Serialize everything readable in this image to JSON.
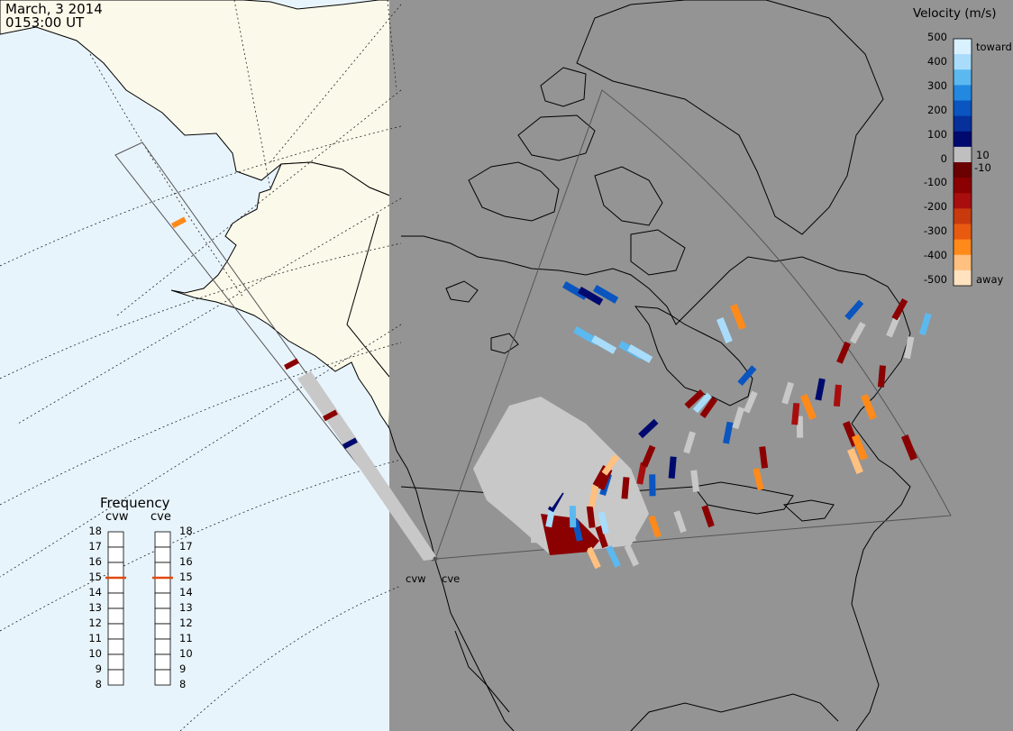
{
  "header": {
    "date": "March, 3 2014",
    "time": "0153:00 UT"
  },
  "legend": {
    "title": "Velocity (m/s)",
    "ticks": [
      "500",
      "400",
      "300",
      "200",
      "100",
      "0",
      "-100",
      "-200",
      "-300",
      "-400",
      "-500"
    ],
    "side_labels": [
      "toward",
      "10",
      "-10",
      "away"
    ],
    "colors": [
      "#d9f0ff",
      "#a8dcfa",
      "#5bb9f0",
      "#2388e0",
      "#0a55c0",
      "#06309a",
      "#000a6e",
      "#bfbfbf",
      "#6a0000",
      "#8b0000",
      "#a80e0e",
      "#c83a0e",
      "#e85a10",
      "#ff8a1a",
      "#ffc080",
      "#ffe2c0"
    ]
  },
  "frequency": {
    "title": "Frequency",
    "radars": [
      "cvw",
      "cve"
    ],
    "scale": [
      "18",
      "17",
      "16",
      "15",
      "14",
      "13",
      "12",
      "11",
      "10",
      "9",
      "8"
    ],
    "values_mhz": [
      15,
      15
    ]
  },
  "radars": {
    "labels": [
      "cvw",
      "cve"
    ]
  },
  "colors": {
    "ocean": "#e8f4fc",
    "land": "#fbf9ea",
    "night": "#949494",
    "ground_scatter": "#c8c8c8"
  }
}
